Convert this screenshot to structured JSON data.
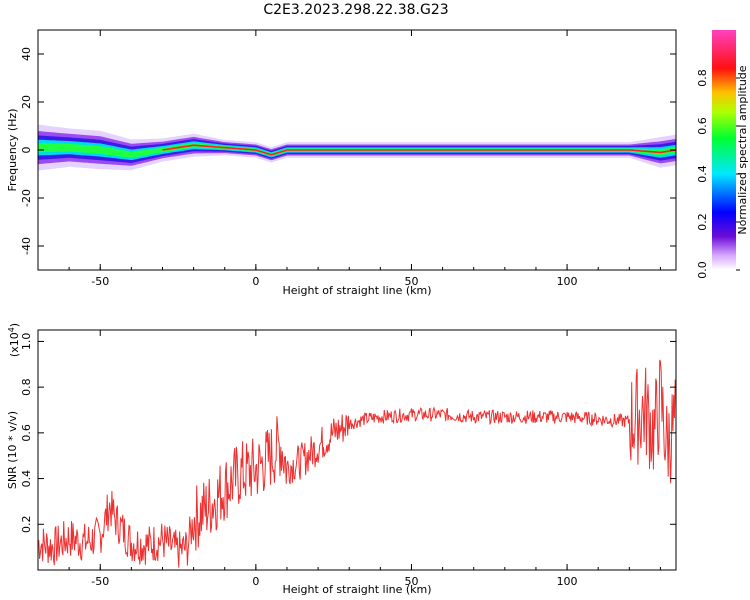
{
  "title": "C2E3.2023.298.22.38.G23",
  "chart_data": [
    {
      "type": "heatmap",
      "xlabel": "Height of straight line (km)",
      "ylabel": "Frequency (Hz)",
      "xlim": [
        -70,
        135
      ],
      "ylim": [
        -50,
        50
      ],
      "x_ticks": [
        -50,
        0,
        50,
        100
      ],
      "y_ticks": [
        -40,
        -20,
        0,
        20,
        40
      ],
      "colorbar": {
        "label": "Normalized spectral amplitude",
        "range": [
          0,
          1
        ],
        "ticks": [
          "0.0",
          "0.2",
          "0.4",
          "0.6",
          "0.8"
        ],
        "colormap": "rainbow (white-purple-blue-cyan-green-yellow-red-magenta)"
      },
      "band_profile": [
        {
          "x": -70,
          "center": 1,
          "halfwidth": 6
        },
        {
          "x": -60,
          "center": 1,
          "halfwidth": 5
        },
        {
          "x": -50,
          "center": 0,
          "halfwidth": 5
        },
        {
          "x": -40,
          "center": -2,
          "halfwidth": 4
        },
        {
          "x": -30,
          "center": 0,
          "halfwidth": 3
        },
        {
          "x": -20,
          "center": 2,
          "halfwidth": 3
        },
        {
          "x": -10,
          "center": 1,
          "halfwidth": 2
        },
        {
          "x": 0,
          "center": 0,
          "halfwidth": 2
        },
        {
          "x": 5,
          "center": -2,
          "halfwidth": 2
        },
        {
          "x": 10,
          "center": 0,
          "halfwidth": 2
        },
        {
          "x": 50,
          "center": 0,
          "halfwidth": 2
        },
        {
          "x": 100,
          "center": 0,
          "halfwidth": 2
        },
        {
          "x": 120,
          "center": 0,
          "halfwidth": 2
        },
        {
          "x": 130,
          "center": -1,
          "halfwidth": 4
        },
        {
          "x": 135,
          "center": 0,
          "halfwidth": 4
        }
      ]
    },
    {
      "type": "line",
      "xlabel": "Height of straight line (km)",
      "ylabel": "SNR (10 * v/v)",
      "y_multiplier": "(x10^4)",
      "xlim": [
        -70,
        135
      ],
      "ylim": [
        0,
        1.05
      ],
      "x_ticks": [
        -50,
        0,
        50,
        100
      ],
      "y_ticks": [
        0.2,
        0.4,
        0.6,
        0.8,
        1.0
      ],
      "line_color": "#ee3030",
      "series": [
        {
          "x": [
            -70,
            -65,
            -60,
            -55,
            -50,
            -47,
            -45,
            -40,
            -35,
            -30,
            -25,
            -22,
            -20,
            -15,
            -10,
            -5,
            0,
            5,
            8,
            10,
            15,
            20,
            25,
            30,
            35,
            40,
            50,
            60,
            70,
            80,
            90,
            100,
            110,
            120,
            125,
            128,
            130,
            132,
            135
          ],
          "values": [
            0.12,
            0.1,
            0.14,
            0.12,
            0.15,
            0.28,
            0.22,
            0.12,
            0.11,
            0.13,
            0.08,
            0.1,
            0.22,
            0.28,
            0.36,
            0.42,
            0.44,
            0.5,
            0.55,
            0.45,
            0.48,
            0.54,
            0.6,
            0.64,
            0.66,
            0.67,
            0.68,
            0.68,
            0.67,
            0.67,
            0.67,
            0.67,
            0.66,
            0.65,
            0.7,
            0.6,
            0.75,
            0.55,
            0.65
          ]
        }
      ]
    }
  ]
}
